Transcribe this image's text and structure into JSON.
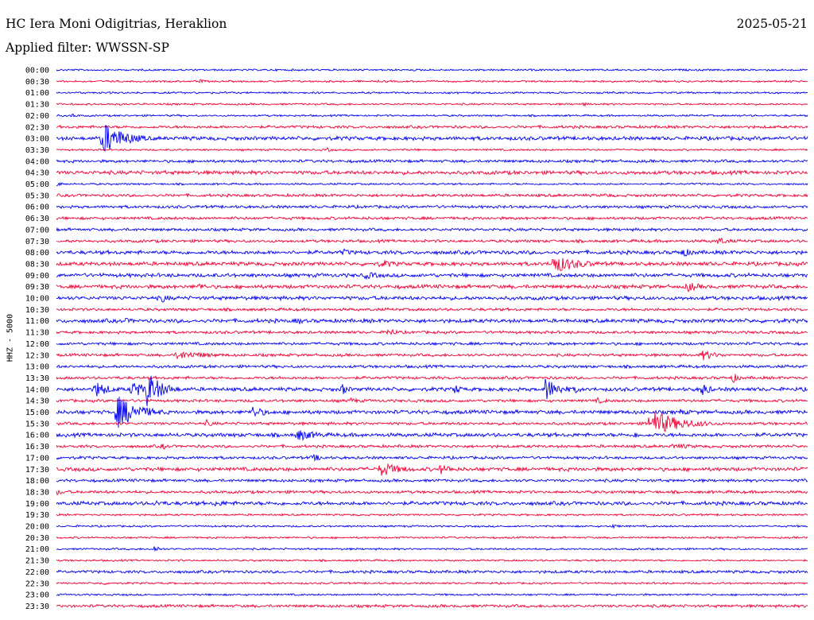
{
  "header": {
    "station": "HC Iera Moni Odigitrias, Heraklion",
    "date": "2025-05-21",
    "filter": "Applied filter: WWSSN-SP"
  },
  "colors": {
    "even_row": "#0000ee",
    "odd_row": "#ee0033",
    "text": "#000000"
  },
  "chart_data": {
    "type": "line",
    "title": "HC Iera Moni Odigitrias, Heraklion",
    "subtitle": "Applied filter: WWSSN-SP",
    "ylabel": "HHZ - 5000",
    "xlabel": "",
    "grid": false,
    "row_labels": [
      "00:00",
      "00:30",
      "01:00",
      "01:30",
      "02:00",
      "02:30",
      "03:00",
      "03:30",
      "04:00",
      "04:30",
      "05:00",
      "05:30",
      "06:00",
      "06:30",
      "07:00",
      "07:30",
      "08:00",
      "08:30",
      "09:00",
      "09:30",
      "10:00",
      "10:30",
      "11:00",
      "11:30",
      "12:00",
      "12:30",
      "13:00",
      "13:30",
      "14:00",
      "14:30",
      "15:00",
      "15:30",
      "16:00",
      "16:30",
      "17:00",
      "17:30",
      "18:00",
      "18:30",
      "19:00",
      "19:30",
      "20:00",
      "20:30",
      "21:00",
      "21:30",
      "22:00",
      "22:30",
      "23:00",
      "23:30"
    ],
    "row_noise": [
      1,
      1,
      1,
      1,
      1,
      1.5,
      2,
      1,
      1.5,
      2,
      1,
      1.5,
      1.5,
      1.5,
      1.5,
      1.5,
      2,
      2,
      2,
      2,
      2,
      1.5,
      2,
      1.5,
      1.5,
      1.5,
      1.5,
      1.5,
      2,
      1.5,
      2,
      1.5,
      2,
      1.5,
      1.5,
      2,
      1.5,
      1.5,
      2,
      1,
      1,
      1,
      1,
      1,
      1.5,
      1,
      1,
      1.5
    ],
    "events": [
      {
        "row": 1,
        "t": 0.19,
        "amp": 3,
        "dur": 0.01
      },
      {
        "row": 3,
        "t": 0.7,
        "amp": 3,
        "dur": 0.01
      },
      {
        "row": 4,
        "t": 0.02,
        "amp": 3,
        "dur": 0.01
      },
      {
        "row": 6,
        "t": 0.06,
        "amp": 22,
        "dur": 0.03
      },
      {
        "row": 7,
        "t": 0.36,
        "amp": 3,
        "dur": 0.01
      },
      {
        "row": 10,
        "t": 0.0,
        "amp": 3,
        "dur": 0.01
      },
      {
        "row": 11,
        "t": 0.73,
        "amp": 3,
        "dur": 0.02
      },
      {
        "row": 15,
        "t": 0.88,
        "amp": 5,
        "dur": 0.02
      },
      {
        "row": 16,
        "t": 0.38,
        "amp": 5,
        "dur": 0.02
      },
      {
        "row": 16,
        "t": 0.83,
        "amp": 7,
        "dur": 0.02
      },
      {
        "row": 17,
        "t": 0.43,
        "amp": 7,
        "dur": 0.02
      },
      {
        "row": 17,
        "t": 0.66,
        "amp": 12,
        "dur": 0.04
      },
      {
        "row": 18,
        "t": 0.41,
        "amp": 5,
        "dur": 0.03
      },
      {
        "row": 19,
        "t": 0.19,
        "amp": 6,
        "dur": 0.01
      },
      {
        "row": 19,
        "t": 0.84,
        "amp": 7,
        "dur": 0.02
      },
      {
        "row": 20,
        "t": 0.14,
        "amp": 7,
        "dur": 0.01
      },
      {
        "row": 22,
        "t": 0.09,
        "amp": 4,
        "dur": 0.02
      },
      {
        "row": 22,
        "t": 0.32,
        "amp": 6,
        "dur": 0.01
      },
      {
        "row": 23,
        "t": 0.44,
        "amp": 5,
        "dur": 0.02
      },
      {
        "row": 25,
        "t": 0.16,
        "amp": 6,
        "dur": 0.05
      },
      {
        "row": 25,
        "t": 0.86,
        "amp": 7,
        "dur": 0.02
      },
      {
        "row": 27,
        "t": 0.9,
        "amp": 7,
        "dur": 0.01
      },
      {
        "row": 28,
        "t": 0.05,
        "amp": 12,
        "dur": 0.02
      },
      {
        "row": 28,
        "t": 0.1,
        "amp": 12,
        "dur": 0.02
      },
      {
        "row": 28,
        "t": 0.12,
        "amp": 24,
        "dur": 0.02
      },
      {
        "row": 28,
        "t": 0.38,
        "amp": 8,
        "dur": 0.01
      },
      {
        "row": 28,
        "t": 0.53,
        "amp": 7,
        "dur": 0.01
      },
      {
        "row": 28,
        "t": 0.65,
        "amp": 16,
        "dur": 0.02
      },
      {
        "row": 28,
        "t": 0.69,
        "amp": 6,
        "dur": 0.01
      },
      {
        "row": 28,
        "t": 0.86,
        "amp": 10,
        "dur": 0.01
      },
      {
        "row": 29,
        "t": 0.39,
        "amp": 4,
        "dur": 0.02
      },
      {
        "row": 29,
        "t": 0.72,
        "amp": 4,
        "dur": 0.02
      },
      {
        "row": 30,
        "t": 0.08,
        "amp": 22,
        "dur": 0.03
      },
      {
        "row": 30,
        "t": 0.26,
        "amp": 8,
        "dur": 0.02
      },
      {
        "row": 30,
        "t": 0.83,
        "amp": 4,
        "dur": 0.02
      },
      {
        "row": 31,
        "t": 0.2,
        "amp": 5,
        "dur": 0.01
      },
      {
        "row": 31,
        "t": 0.79,
        "amp": 18,
        "dur": 0.04
      },
      {
        "row": 32,
        "t": 0.32,
        "amp": 8,
        "dur": 0.03
      },
      {
        "row": 32,
        "t": 0.77,
        "amp": 5,
        "dur": 0.01
      },
      {
        "row": 33,
        "t": 0.14,
        "amp": 5,
        "dur": 0.01
      },
      {
        "row": 33,
        "t": 0.82,
        "amp": 4,
        "dur": 0.04
      },
      {
        "row": 34,
        "t": 0.34,
        "amp": 5,
        "dur": 0.02
      },
      {
        "row": 35,
        "t": 0.43,
        "amp": 10,
        "dur": 0.03
      },
      {
        "row": 35,
        "t": 0.51,
        "amp": 7,
        "dur": 0.02
      },
      {
        "row": 36,
        "t": 0.99,
        "amp": 4,
        "dur": 0.01
      },
      {
        "row": 37,
        "t": 0.0,
        "amp": 4,
        "dur": 0.02
      },
      {
        "row": 38,
        "t": 0.13,
        "amp": 4,
        "dur": 0.03
      },
      {
        "row": 38,
        "t": 0.21,
        "amp": 4,
        "dur": 0.04
      },
      {
        "row": 40,
        "t": 0.74,
        "amp": 3,
        "dur": 0.01
      },
      {
        "row": 42,
        "t": 0.13,
        "amp": 5,
        "dur": 0.01
      },
      {
        "row": 45,
        "t": 0.06,
        "amp": 3,
        "dur": 0.01
      }
    ]
  }
}
